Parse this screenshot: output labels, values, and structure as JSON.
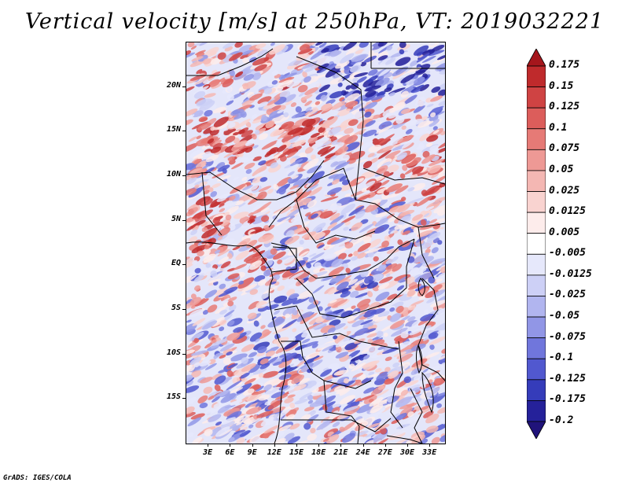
{
  "title": "Vertical velocity [m/s] at 250hPa, VT: 2019032221",
  "footer": "GrADS: IGES/COLA",
  "map": {
    "lon_range": [
      0,
      35
    ],
    "lat_range": [
      -20,
      25
    ],
    "lat_labels": [
      {
        "lat": 20,
        "text": "20N"
      },
      {
        "lat": 15,
        "text": "15N"
      },
      {
        "lat": 10,
        "text": "10N"
      },
      {
        "lat": 5,
        "text": "5N"
      },
      {
        "lat": 0,
        "text": "EQ"
      },
      {
        "lat": -5,
        "text": "5S"
      },
      {
        "lat": -10,
        "text": "10S"
      },
      {
        "lat": -15,
        "text": "15S"
      }
    ],
    "lon_labels": [
      {
        "lon": 3,
        "text": "3E"
      },
      {
        "lon": 6,
        "text": "6E"
      },
      {
        "lon": 9,
        "text": "9E"
      },
      {
        "lon": 12,
        "text": "12E"
      },
      {
        "lon": 15,
        "text": "15E"
      },
      {
        "lon": 18,
        "text": "18E"
      },
      {
        "lon": 21,
        "text": "21E"
      },
      {
        "lon": 24,
        "text": "24E"
      },
      {
        "lon": 27,
        "text": "27E"
      },
      {
        "lon": 30,
        "text": "30E"
      },
      {
        "lon": 33,
        "text": "33E"
      }
    ]
  },
  "colorbar": {
    "top_arrow_color": "#a5161c",
    "bottom_arrow_color": "#20137a",
    "levels": [
      "0.175",
      "0.15",
      "0.125",
      "0.1",
      "0.075",
      "0.05",
      "0.025",
      "0.0125",
      "0.005",
      "-0.005",
      "-0.0125",
      "-0.025",
      "-0.05",
      "-0.075",
      "-0.1",
      "-0.125",
      "-0.175",
      "-0.2"
    ],
    "colors": [
      "#a5161c",
      "#bf2a2c",
      "#cf4343",
      "#dc5d5b",
      "#e67a76",
      "#ee9995",
      "#f4b7b3",
      "#f9d3d0",
      "#fdeceb",
      "#ffffff",
      "#e6e8fb",
      "#cdd0f6",
      "#b1b5ef",
      "#9196e6",
      "#7076dc",
      "#5158cf",
      "#353cba",
      "#25219a",
      "#20137a"
    ]
  }
}
